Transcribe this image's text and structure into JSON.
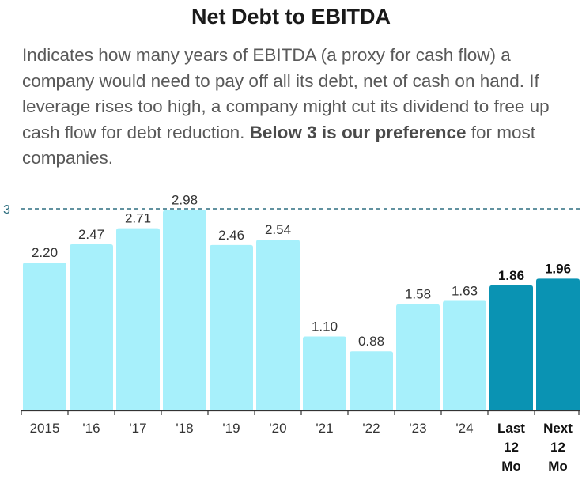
{
  "header": {
    "title": "Net Debt to EBITDA",
    "description_lead": "Indicates how many years of EBITDA (a proxy for cash flow) a company would need to pay off all its debt, net of cash on hand. If leverage rises too high, a company might cut its dividend to free up cash flow for debt reduction. ",
    "description_bold": "Below 3 is our preference",
    "description_tail": " for most companies."
  },
  "colors": {
    "historical_bar": "#a7f0fb",
    "forecast_bar": "#0a93b3",
    "reference_line": "#2f6f80",
    "axis": "#333333"
  },
  "chart_data": {
    "type": "bar",
    "title": "Net Debt to EBITDA",
    "xlabel": "",
    "ylabel": "",
    "ylim": [
      0,
      3.0
    ],
    "reference_line": {
      "value": 3,
      "label": "3",
      "style": "dashed"
    },
    "categories": [
      [
        "2015"
      ],
      [
        "'16"
      ],
      [
        "'17"
      ],
      [
        "'18"
      ],
      [
        "'19"
      ],
      [
        "'20"
      ],
      [
        "'21"
      ],
      [
        "'22"
      ],
      [
        "'23"
      ],
      [
        "'24"
      ],
      [
        "Last",
        "12",
        "Mo"
      ],
      [
        "Next",
        "12",
        "Mo"
      ]
    ],
    "values": [
      2.2,
      2.47,
      2.71,
      2.98,
      2.46,
      2.54,
      1.1,
      0.88,
      1.58,
      1.63,
      1.86,
      1.96
    ],
    "value_labels": [
      "2.20",
      "2.47",
      "2.71",
      "2.98",
      "2.46",
      "2.54",
      "1.10",
      "0.88",
      "1.58",
      "1.63",
      "1.86",
      "1.96"
    ],
    "highlighted": [
      false,
      false,
      false,
      false,
      false,
      false,
      false,
      false,
      false,
      false,
      true,
      true
    ]
  }
}
